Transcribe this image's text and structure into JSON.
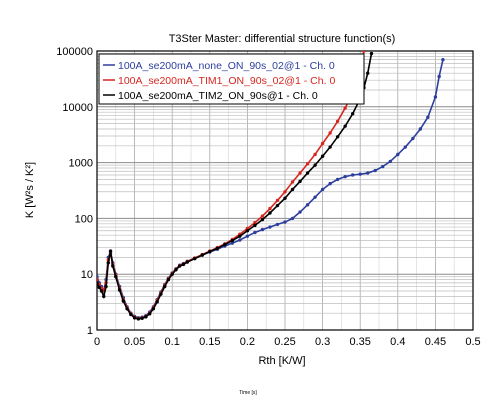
{
  "chart_data": {
    "type": "line",
    "title": "T3Ster Master: differential structure function(s)",
    "xlabel": "Rth  [K/W]",
    "ylabel": "K  [W²s / K²]",
    "caption": "Time [s]",
    "xlim": [
      0,
      0.5
    ],
    "ylim": [
      1,
      100000
    ],
    "y_scale": "log",
    "grid": true,
    "legend_placement": "top-left",
    "x_ticks": [
      0,
      0.05,
      0.1,
      0.15,
      0.2,
      0.25,
      0.3,
      0.35,
      0.4,
      0.45,
      0.5
    ],
    "x_tick_labels": [
      "0",
      "0.05",
      "0.1",
      "0.15",
      "0.2",
      "0.25",
      "0.3",
      "0.35",
      "0.4",
      "0.45",
      "0.5"
    ],
    "y_ticks": [
      1,
      10,
      100,
      1000,
      10000,
      100000
    ],
    "y_tick_labels": [
      "1",
      "10",
      "100",
      "1000",
      "10000",
      "100000"
    ],
    "series": [
      {
        "name": "100A_se200mA_none_ON_90s_02@1 - Ch. 0",
        "color": "#2d3f9e",
        "x": [
          0.0,
          0.003,
          0.006,
          0.009,
          0.012,
          0.015,
          0.018,
          0.021,
          0.025,
          0.03,
          0.035,
          0.04,
          0.045,
          0.05,
          0.055,
          0.06,
          0.065,
          0.07,
          0.075,
          0.08,
          0.085,
          0.09,
          0.095,
          0.1,
          0.105,
          0.11,
          0.115,
          0.12,
          0.13,
          0.14,
          0.15,
          0.16,
          0.17,
          0.18,
          0.19,
          0.2,
          0.21,
          0.22,
          0.23,
          0.24,
          0.25,
          0.26,
          0.27,
          0.28,
          0.29,
          0.3,
          0.31,
          0.32,
          0.33,
          0.34,
          0.35,
          0.36,
          0.37,
          0.38,
          0.39,
          0.4,
          0.41,
          0.42,
          0.43,
          0.44,
          0.45,
          0.455,
          0.46
        ],
        "y": [
          9,
          7,
          6,
          5,
          8,
          20,
          25,
          16,
          10,
          6,
          3.8,
          2.6,
          2,
          1.75,
          1.65,
          1.7,
          1.8,
          2.1,
          2.6,
          3.5,
          4.8,
          6.5,
          8.5,
          10.5,
          12.5,
          14.5,
          15.5,
          17,
          19.5,
          22,
          25,
          28,
          32,
          36,
          41,
          48,
          56,
          63,
          70,
          78,
          86,
          100,
          130,
          175,
          240,
          330,
          420,
          500,
          560,
          600,
          620,
          650,
          720,
          850,
          1050,
          1400,
          1900,
          2700,
          4000,
          6500,
          15000,
          35000,
          70000
        ]
      },
      {
        "name": "100A_se200mA_TIM1_ON_90s_02@1 - Ch. 0",
        "color": "#d7261e",
        "x": [
          0.0,
          0.003,
          0.006,
          0.009,
          0.012,
          0.015,
          0.018,
          0.021,
          0.025,
          0.03,
          0.035,
          0.04,
          0.045,
          0.05,
          0.055,
          0.06,
          0.065,
          0.07,
          0.075,
          0.08,
          0.085,
          0.09,
          0.095,
          0.1,
          0.105,
          0.11,
          0.115,
          0.12,
          0.13,
          0.14,
          0.15,
          0.16,
          0.17,
          0.18,
          0.19,
          0.2,
          0.21,
          0.22,
          0.23,
          0.24,
          0.25,
          0.26,
          0.27,
          0.28,
          0.29,
          0.3,
          0.31,
          0.32,
          0.33,
          0.34,
          0.345,
          0.35,
          0.355
        ],
        "y": [
          8,
          6.5,
          5.5,
          5,
          7,
          18,
          23,
          15,
          9.5,
          5.5,
          3.5,
          2.5,
          1.95,
          1.7,
          1.6,
          1.65,
          1.75,
          2,
          2.5,
          3.4,
          4.6,
          6.3,
          8.3,
          10.3,
          12.3,
          14.3,
          15.3,
          16.8,
          19.5,
          22.5,
          26,
          30,
          35,
          42,
          52,
          66,
          84,
          110,
          150,
          210,
          300,
          450,
          650,
          950,
          1400,
          2200,
          3400,
          5500,
          9500,
          18000,
          30000,
          55000,
          100000
        ]
      },
      {
        "name": "100A_se200mA_TIM2_ON_90s@1 - Ch. 0",
        "color": "#000000",
        "x": [
          0.0,
          0.003,
          0.006,
          0.009,
          0.012,
          0.015,
          0.018,
          0.021,
          0.025,
          0.03,
          0.035,
          0.04,
          0.045,
          0.05,
          0.055,
          0.06,
          0.065,
          0.07,
          0.075,
          0.08,
          0.085,
          0.09,
          0.095,
          0.1,
          0.105,
          0.11,
          0.115,
          0.12,
          0.13,
          0.14,
          0.15,
          0.16,
          0.17,
          0.18,
          0.19,
          0.2,
          0.21,
          0.22,
          0.23,
          0.24,
          0.25,
          0.26,
          0.27,
          0.28,
          0.29,
          0.3,
          0.31,
          0.32,
          0.33,
          0.34,
          0.35,
          0.355,
          0.36,
          0.365
        ],
        "y": [
          7,
          5.8,
          5,
          4,
          6,
          16,
          26,
          14,
          9,
          5.2,
          3.3,
          2.4,
          1.9,
          1.65,
          1.58,
          1.62,
          1.72,
          1.95,
          2.4,
          3.2,
          4.4,
          6,
          8,
          10,
          12,
          14,
          15,
          16.5,
          19,
          22,
          25.5,
          29,
          34,
          40,
          48,
          60,
          75,
          95,
          125,
          170,
          230,
          330,
          460,
          650,
          900,
          1300,
          1900,
          2900,
          4500,
          7500,
          14000,
          22000,
          40000,
          90000
        ]
      }
    ]
  }
}
